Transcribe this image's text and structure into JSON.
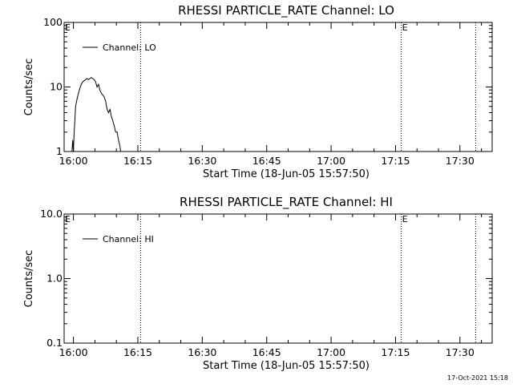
{
  "timestamp": "17-Oct-2021 15:18",
  "chart_data": [
    {
      "type": "line",
      "title": "RHESSI PARTICLE_RATE Channel: LO",
      "xlabel": "Start Time (18-Jun-05 15:57:50)",
      "ylabel": "Counts/sec",
      "xlim": [
        "15:57:50",
        "17:37:30"
      ],
      "ylim": [
        1,
        100
      ],
      "yscale": "log",
      "x_ticks": [
        "16:00",
        "16:15",
        "16:30",
        "16:45",
        "17:00",
        "17:15",
        "17:30"
      ],
      "y_ticks": [
        "1",
        "10",
        "100"
      ],
      "legend": {
        "label": "Channel: LO",
        "placement": "top-left"
      },
      "markers": [
        {
          "time": "15:57:50",
          "label": "E"
        },
        {
          "time": "16:15:40",
          "label": ""
        },
        {
          "time": "17:16:20",
          "label": "E"
        },
        {
          "time": "17:33:40",
          "label": ""
        }
      ],
      "series": [
        {
          "name": "Channel: LO",
          "x": [
            "15:59:40",
            "15:59:50",
            "16:00:00",
            "16:00:10",
            "16:00:20",
            "16:00:30",
            "16:00:50",
            "16:01:10",
            "16:01:30",
            "16:01:50",
            "16:02:10",
            "16:02:30",
            "16:02:50",
            "16:03:10",
            "16:03:30",
            "16:03:50",
            "16:04:10",
            "16:04:30",
            "16:04:50",
            "16:05:10",
            "16:05:30",
            "16:05:50",
            "16:06:10",
            "16:06:30",
            "16:06:50",
            "16:07:10",
            "16:07:30",
            "16:07:50",
            "16:08:10",
            "16:08:30",
            "16:08:50",
            "16:09:10",
            "16:09:30",
            "16:09:50",
            "16:10:10",
            "16:10:30",
            "16:10:50",
            "16:11:00"
          ],
          "values": [
            1,
            1.5,
            1,
            2,
            3,
            5,
            6.5,
            8,
            9.5,
            11,
            12,
            12.5,
            13,
            13.5,
            13,
            13.5,
            14,
            13.5,
            13,
            12,
            10,
            11,
            9,
            8,
            7.5,
            7,
            6,
            4.5,
            4,
            4.5,
            3.5,
            3,
            2.5,
            2,
            2,
            1.5,
            1.2,
            1
          ]
        }
      ]
    },
    {
      "type": "line",
      "title": "RHESSI PARTICLE_RATE Channel: HI",
      "xlabel": "Start Time (18-Jun-05 15:57:50)",
      "ylabel": "Counts/sec",
      "xlim": [
        "15:57:50",
        "17:37:30"
      ],
      "ylim": [
        0.1,
        10
      ],
      "yscale": "log",
      "x_ticks": [
        "16:00",
        "16:15",
        "16:30",
        "16:45",
        "17:00",
        "17:15",
        "17:30"
      ],
      "y_ticks": [
        "0.1",
        "1.0",
        "10.0"
      ],
      "legend": {
        "label": "Channel: HI",
        "placement": "top-left"
      },
      "markers": [
        {
          "time": "15:57:50",
          "label": "E"
        },
        {
          "time": "16:15:40",
          "label": ""
        },
        {
          "time": "17:16:20",
          "label": "E"
        },
        {
          "time": "17:33:40",
          "label": ""
        }
      ],
      "series": [
        {
          "name": "Channel: HI",
          "x": [],
          "values": []
        }
      ]
    }
  ]
}
